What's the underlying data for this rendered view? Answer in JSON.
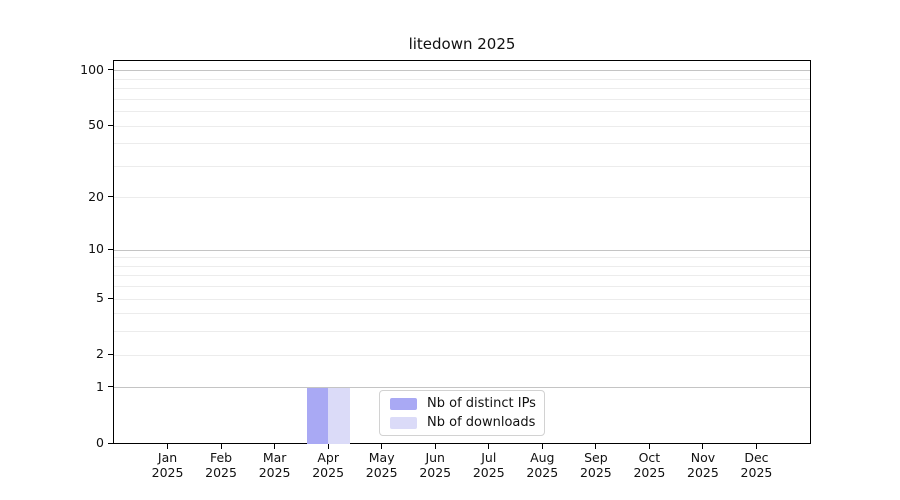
{
  "title": "litedown 2025",
  "colors": {
    "bar_distinct_ips": "#a9a9f4",
    "bar_downloads": "#dbdbf8",
    "grid_minor": "#ececec",
    "grid_major": "#c4c4c4",
    "axis": "#000000",
    "legend_border": "#d2d2d2"
  },
  "legend": {
    "items": [
      {
        "label": "Nb of distinct IPs"
      },
      {
        "label": "Nb of downloads"
      }
    ]
  },
  "chart_data": {
    "type": "bar",
    "title": "litedown 2025",
    "categories": [
      "Jan\n2025",
      "Feb\n2025",
      "Mar\n2025",
      "Apr\n2025",
      "May\n2025",
      "Jun\n2025",
      "Jul\n2025",
      "Aug\n2025",
      "Sep\n2025",
      "Oct\n2025",
      "Nov\n2025",
      "Dec\n2025"
    ],
    "series": [
      {
        "name": "Nb of distinct IPs",
        "color": "#a9a9f4",
        "values": [
          0,
          0,
          0,
          1,
          0,
          0,
          0,
          0,
          0,
          0,
          0,
          0
        ]
      },
      {
        "name": "Nb of downloads",
        "color": "#dbdbf8",
        "values": [
          0,
          0,
          0,
          1,
          0,
          0,
          0,
          0,
          0,
          0,
          0,
          0
        ]
      }
    ],
    "xlabel": "",
    "ylabel": "",
    "yscale": "log1p",
    "ylim": [
      0,
      113
    ],
    "yticks": [
      0,
      1,
      2,
      5,
      10,
      20,
      50,
      100
    ],
    "grid_minor": [
      2,
      3,
      4,
      5,
      6,
      7,
      8,
      9,
      20,
      30,
      40,
      50,
      60,
      70,
      80,
      90
    ],
    "grid_major": [
      1,
      10,
      100
    ],
    "grid": "horizontal",
    "legend_position": "inside-bottom-center"
  }
}
